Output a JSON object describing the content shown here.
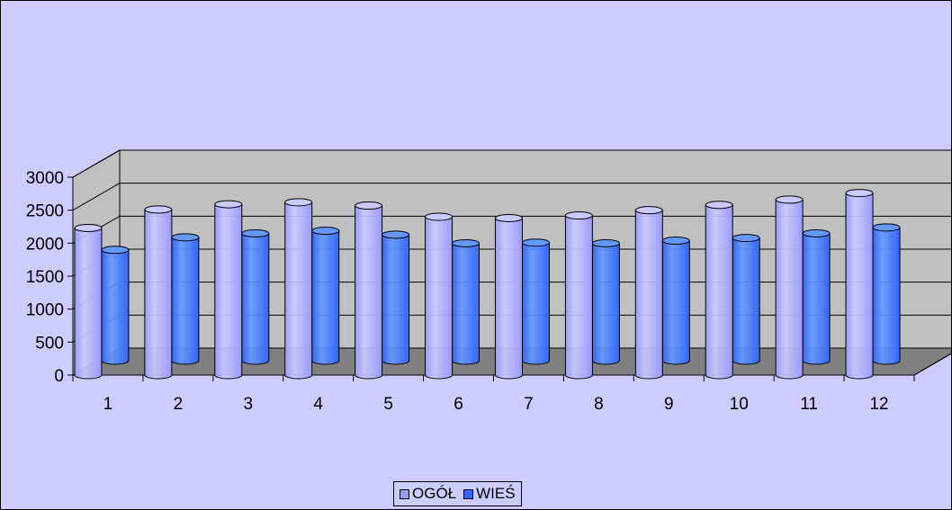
{
  "chart_data": {
    "type": "bar",
    "style": "3d-cylinder",
    "categories": [
      "1",
      "2",
      "3",
      "4",
      "5",
      "6",
      "7",
      "8",
      "9",
      "10",
      "11",
      "12"
    ],
    "series": [
      {
        "name": "OGÓŁ",
        "color": "#9999ff",
        "values": [
          2230,
          2510,
          2590,
          2620,
          2570,
          2400,
          2380,
          2420,
          2500,
          2580,
          2660,
          2760
        ]
      },
      {
        "name": "WIEŚ",
        "color": "#3366ff",
        "values": [
          1680,
          1870,
          1930,
          1970,
          1910,
          1780,
          1790,
          1780,
          1820,
          1860,
          1930,
          2020
        ]
      }
    ],
    "y_ticks": [
      "0",
      "500",
      "1000",
      "1500",
      "2000",
      "2500",
      "3000"
    ],
    "ylim": [
      0,
      3000
    ],
    "grid": true,
    "legend": "bottom",
    "colors": {
      "chart_background": "#ccccff",
      "back_wall": "#c0c0c0",
      "floor": "#808080"
    }
  }
}
